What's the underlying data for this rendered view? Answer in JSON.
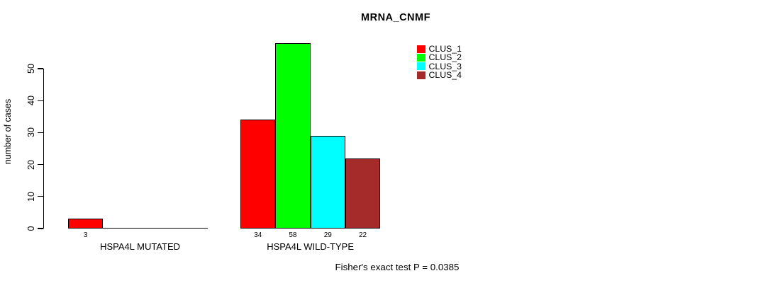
{
  "title": "MRNA_CNMF",
  "chart_data": {
    "type": "bar",
    "title": "MRNA_CNMF",
    "xlabel": "",
    "ylabel": "number of cases",
    "yticks": [
      0,
      10,
      20,
      30,
      40,
      50
    ],
    "ylim": [
      0,
      58
    ],
    "grid": false,
    "legend_position": "top-right",
    "categories": [
      "HSPA4L MUTATED",
      "HSPA4L WILD-TYPE"
    ],
    "series": [
      {
        "name": "CLUS_1",
        "color": "#ff0000",
        "values": [
          3,
          34
        ]
      },
      {
        "name": "CLUS_2",
        "color": "#00ff00",
        "values": [
          0,
          58
        ]
      },
      {
        "name": "CLUS_3",
        "color": "#00ffff",
        "values": [
          0,
          29
        ]
      },
      {
        "name": "CLUS_4",
        "color": "#a52a2a",
        "values": [
          0,
          22
        ]
      }
    ],
    "bar_value_labels": {
      "HSPA4L MUTATED": [
        3,
        null,
        null,
        null
      ],
      "HSPA4L WILD-TYPE": [
        34,
        58,
        29,
        22
      ]
    },
    "annotation": "Fisher's exact test P = 0.0385"
  },
  "legend": {
    "items": [
      {
        "label": "CLUS_1",
        "color": "#ff0000"
      },
      {
        "label": "CLUS_2",
        "color": "#00ff00"
      },
      {
        "label": "CLUS_3",
        "color": "#00ffff"
      },
      {
        "label": "CLUS_4",
        "color": "#a52a2a"
      }
    ]
  },
  "footer": {
    "text": "Fisher's exact test P = 0.0385"
  }
}
